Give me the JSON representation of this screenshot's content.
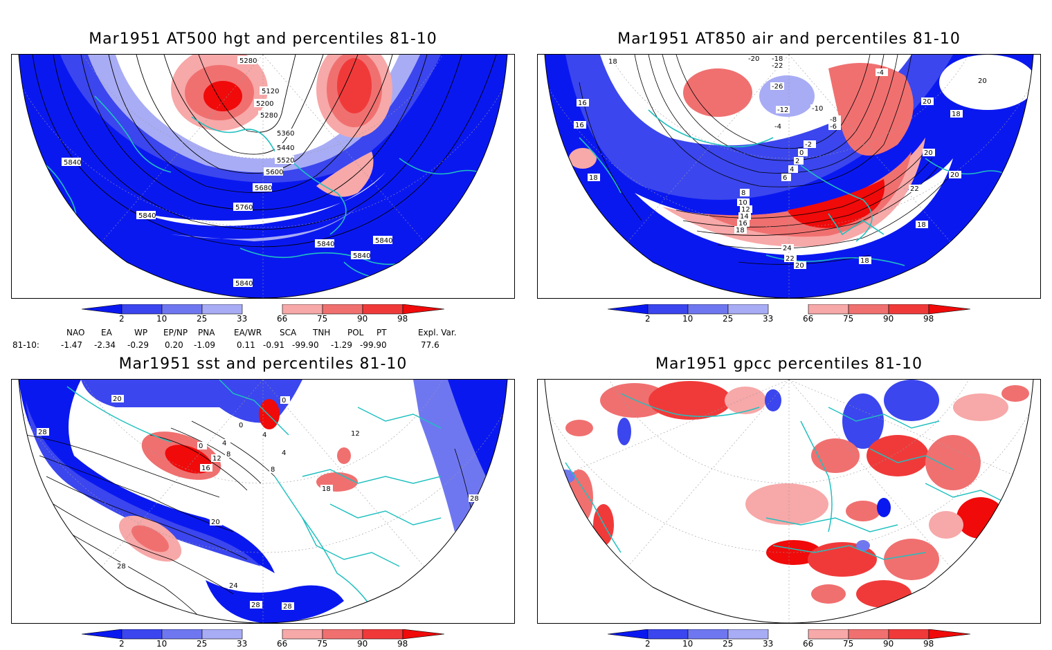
{
  "panels": [
    {
      "id": "hgt500",
      "title": "Mar1951 AT500 hgt and percentiles 81-10",
      "contour_labels": [
        "5280",
        "5120",
        "5200",
        "5280",
        "5360",
        "5440",
        "5520",
        "5600",
        "5680",
        "5760",
        "5840",
        "5840",
        "5840",
        "5840",
        "5840",
        "5840"
      ]
    },
    {
      "id": "air850",
      "title": "Mar1951 AT850 air and percentiles 81-10",
      "contour_labels": [
        "-20",
        "-18",
        "-22",
        "-26",
        "-12",
        "-10",
        "-8",
        "-6",
        "-4",
        "-4",
        "-2",
        "0",
        "2",
        "4",
        "6",
        "8",
        "10",
        "12",
        "14",
        "16",
        "18",
        "18",
        "16",
        "16",
        "18",
        "20",
        "18",
        "20",
        "20",
        "22",
        "20",
        "24",
        "22",
        "20",
        "18",
        "18"
      ]
    },
    {
      "id": "sst",
      "title": "Mar1951 sst and percentiles 81-10",
      "contour_labels": [
        "20",
        "28",
        "0",
        "0",
        "4",
        "4",
        "0",
        "8",
        "12",
        "16",
        "4",
        "8",
        "12",
        "18",
        "28",
        "20",
        "24",
        "28",
        "28",
        "28"
      ]
    },
    {
      "id": "gpcc",
      "title": "Mar1951 gpcc percentiles 81-10",
      "contour_labels": []
    }
  ],
  "colorbar": {
    "labels": [
      "2",
      "10",
      "25",
      "33",
      "66",
      "75",
      "90",
      "98"
    ],
    "colors": [
      "#0a18f0",
      "#3b46ee",
      "#6f77f0",
      "#a8acf5",
      "#ffffff",
      "#f7a8a8",
      "#f07070",
      "#f03a3a",
      "#f00a0a"
    ]
  },
  "indices": {
    "headers": [
      "NAO",
      "EA",
      "WP",
      "EP/NP",
      "PNA",
      "EA/WR",
      "SCA",
      "TNH",
      "POL",
      "PT",
      "Expl. Var."
    ],
    "row_label": "81-10:",
    "values": [
      "-1.47",
      "-2.34",
      "-0.29",
      "0.20",
      "-1.09",
      "0.11",
      "-0.91",
      "-99.90",
      "-1.29",
      "-99.90",
      "77.6"
    ]
  },
  "colors": {
    "coast": "#20c0c0",
    "contour": "#000000",
    "grid": "#9a9a9a"
  }
}
